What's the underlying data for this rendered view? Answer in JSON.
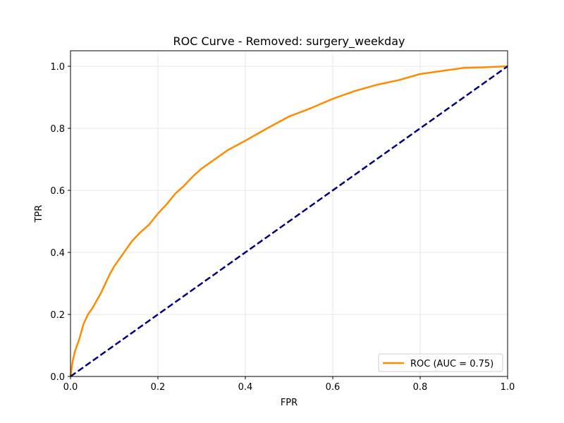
{
  "chart_data": {
    "type": "line",
    "title": "ROC Curve - Removed: surgery_weekday",
    "xlabel": "FPR",
    "ylabel": "TPR",
    "xlim": [
      0.0,
      1.0
    ],
    "ylim": [
      0.0,
      1.05
    ],
    "xticks": [
      "0.0",
      "0.2",
      "0.4",
      "0.6",
      "0.8",
      "1.0"
    ],
    "yticks": [
      "0.0",
      "0.2",
      "0.4",
      "0.6",
      "0.8",
      "1.0"
    ],
    "grid": true,
    "legend_position": "lower-right",
    "series": [
      {
        "name": "ROC (AUC = 0.75)",
        "color": "#ff8c00",
        "style": "solid",
        "x": [
          0.0,
          0.005,
          0.01,
          0.015,
          0.02,
          0.03,
          0.04,
          0.05,
          0.06,
          0.07,
          0.08,
          0.09,
          0.1,
          0.12,
          0.14,
          0.16,
          0.18,
          0.2,
          0.22,
          0.24,
          0.26,
          0.28,
          0.3,
          0.33,
          0.36,
          0.4,
          0.45,
          0.5,
          0.55,
          0.6,
          0.65,
          0.7,
          0.75,
          0.8,
          0.85,
          0.9,
          0.95,
          1.0
        ],
        "y": [
          0.0,
          0.05,
          0.08,
          0.1,
          0.12,
          0.17,
          0.2,
          0.22,
          0.245,
          0.27,
          0.3,
          0.33,
          0.355,
          0.395,
          0.435,
          0.465,
          0.49,
          0.525,
          0.555,
          0.59,
          0.615,
          0.645,
          0.67,
          0.7,
          0.73,
          0.76,
          0.8,
          0.838,
          0.865,
          0.895,
          0.92,
          0.94,
          0.955,
          0.975,
          0.985,
          0.995,
          0.997,
          1.0
        ]
      },
      {
        "name": "",
        "color": "#000080",
        "style": "dashed",
        "x": [
          0.0,
          1.0
        ],
        "y": [
          0.0,
          1.0
        ]
      }
    ]
  }
}
